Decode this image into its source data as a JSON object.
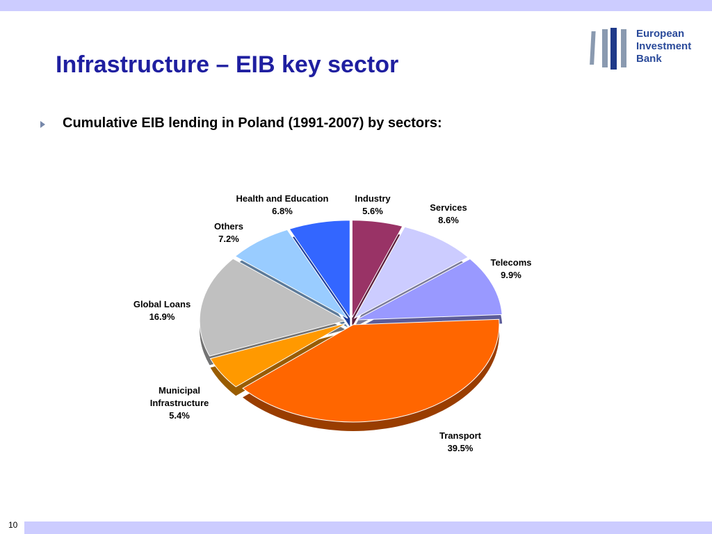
{
  "title": "Infrastructure – EIB key sector",
  "bullet": "Cumulative EIB lending in Poland (1991-2007) by sectors:",
  "logo": [
    "European",
    "Investment",
    "Bank"
  ],
  "page_number": "10",
  "chart_data": {
    "type": "pie",
    "categories": [
      "Industry",
      "Services",
      "Telecoms",
      "Transport",
      "Municipal Infrastructure",
      "Global Loans",
      "Others",
      "Health and Education"
    ],
    "values": [
      5.6,
      8.6,
      9.9,
      39.5,
      5.4,
      16.9,
      7.2,
      6.8
    ],
    "value_labels": [
      "5.6%",
      "8.6%",
      "9.9%",
      "39.5%",
      "5.4%",
      "16.9%",
      "7.2%",
      "6.8%"
    ],
    "colors": [
      "#993366",
      "#ccccff",
      "#9999ff",
      "#ff6600",
      "#ff9900",
      "#c0c0c0",
      "#99ccff",
      "#3366ff"
    ]
  }
}
